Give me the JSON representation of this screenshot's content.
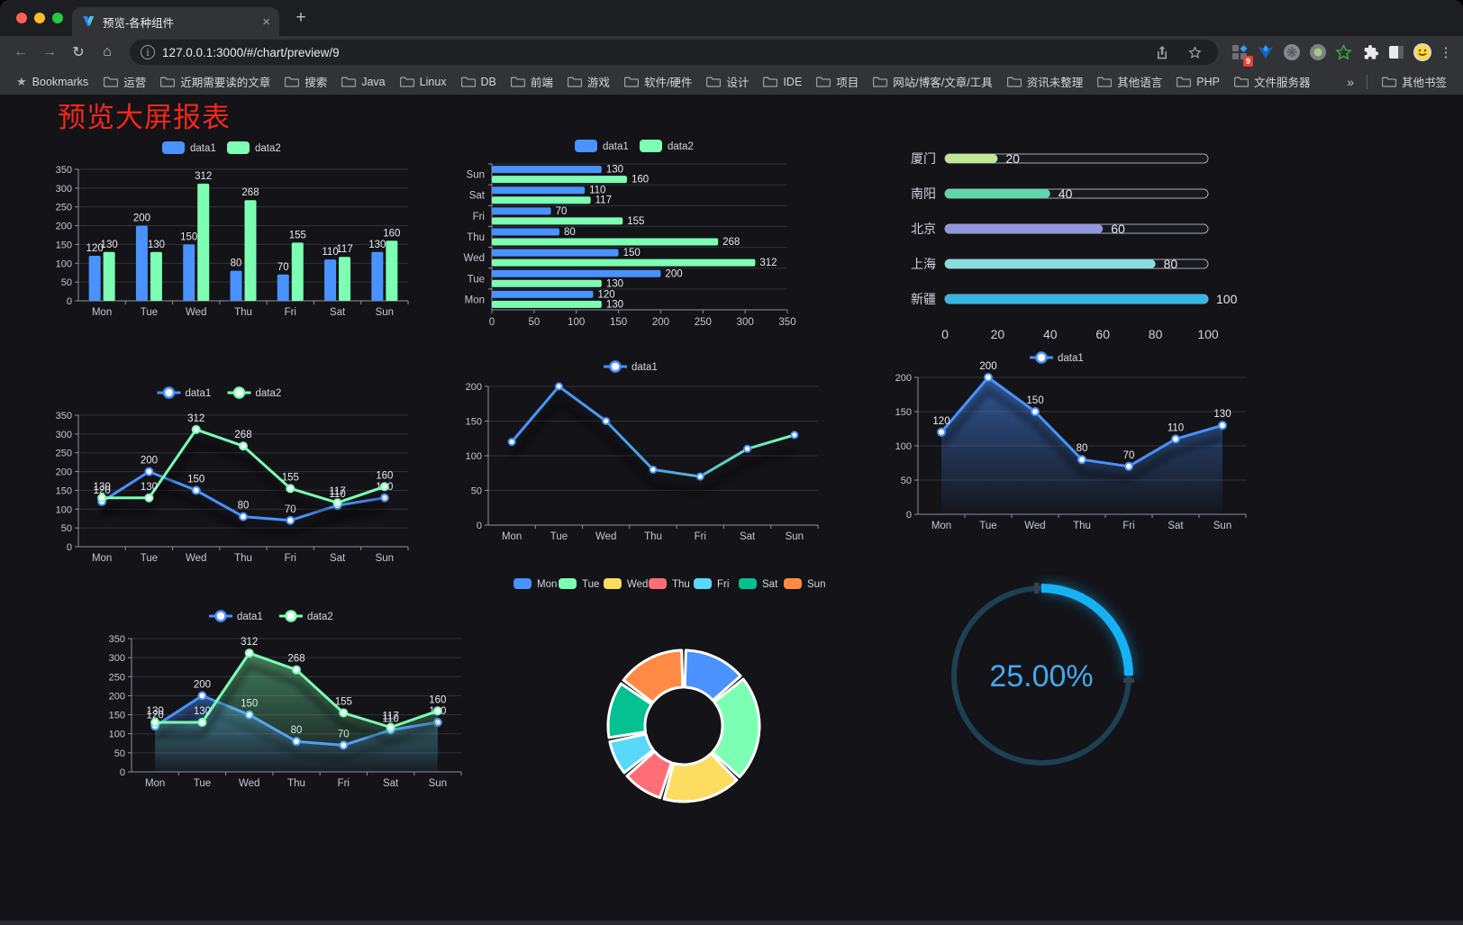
{
  "browser": {
    "tab_title": "预览-各种组件",
    "url": "127.0.0.1:3000/#/chart/preview/9",
    "new_tab": "+",
    "close_tab": "×",
    "bookmarks_label": "Bookmarks",
    "bookmarks": [
      "运营",
      "近期需要读的文章",
      "搜索",
      "Java",
      "Linux",
      "DB",
      "前端",
      "游戏",
      "软件/硬件",
      "设计",
      "IDE",
      "项目",
      "网站/博客/文章/工具",
      "资讯未整理",
      "其他语言",
      "PHP",
      "文件服务器"
    ],
    "bookmarks_overflow": "»",
    "other_bookmarks": "其他书签",
    "extension_badge": "9",
    "menu_dots": "⋮"
  },
  "page": {
    "title": "预览大屏报表",
    "title_color": "#f4271a",
    "background": "#131318"
  },
  "chart_data": [
    {
      "renderer": "bar",
      "type": "bar",
      "categories": [
        "Mon",
        "Tue",
        "Wed",
        "Thu",
        "Fri",
        "Sat",
        "Sun"
      ],
      "series": [
        {
          "name": "data1",
          "color": "#4992ff",
          "values": [
            120,
            200,
            150,
            80,
            70,
            110,
            130
          ]
        },
        {
          "name": "data2",
          "color": "#7cffb2",
          "values": [
            130,
            130,
            312,
            268,
            155,
            117,
            160
          ]
        }
      ],
      "ylim": [
        0,
        350
      ],
      "ystep": 50,
      "legend_position": "top",
      "grid": true
    },
    {
      "renderer": "hbar",
      "type": "bar",
      "orientation": "horizontal",
      "categories": [
        "Sun",
        "Sat",
        "Fri",
        "Thu",
        "Wed",
        "Tue",
        "Mon"
      ],
      "series": [
        {
          "name": "data1",
          "color": "#4992ff",
          "values": [
            130,
            110,
            70,
            80,
            150,
            200,
            120
          ]
        },
        {
          "name": "data2",
          "color": "#7cffb2",
          "values": [
            160,
            117,
            155,
            268,
            312,
            130,
            130
          ]
        }
      ],
      "xlim": [
        0,
        350
      ],
      "xstep": 50,
      "legend_position": "top",
      "grid": true
    },
    {
      "renderer": "progress",
      "type": "bar",
      "orientation": "horizontal",
      "categories": [
        "厦门",
        "南阳",
        "北京",
        "上海",
        "新疆"
      ],
      "values": [
        20,
        40,
        60,
        80,
        100
      ],
      "colors": [
        "#c3e798",
        "#5fd9a9",
        "#9197dd",
        "#86dfdf",
        "#35b6e6"
      ],
      "xlim": [
        0,
        100
      ],
      "ticks": [
        0,
        20,
        40,
        60,
        80,
        100
      ]
    },
    {
      "renderer": "line2",
      "type": "line",
      "categories": [
        "Mon",
        "Tue",
        "Wed",
        "Thu",
        "Fri",
        "Sat",
        "Sun"
      ],
      "series": [
        {
          "name": "data1",
          "color": "#4992ff",
          "values": [
            120,
            200,
            150,
            80,
            70,
            110,
            130
          ]
        },
        {
          "name": "data2",
          "color": "#7cffb2",
          "values": [
            130,
            130,
            312,
            268,
            155,
            117,
            160
          ]
        }
      ],
      "ylim": [
        0,
        350
      ],
      "ystep": 50,
      "show_labels": true,
      "legend_position": "top",
      "grid": true
    },
    {
      "renderer": "linegrad",
      "type": "line",
      "categories": [
        "Mon",
        "Tue",
        "Wed",
        "Thu",
        "Fri",
        "Sat",
        "Sun"
      ],
      "series": [
        {
          "name": "data1",
          "gradient": [
            "#4992ff",
            "#7cffb2"
          ],
          "values": [
            120,
            200,
            150,
            80,
            70,
            110,
            130
          ]
        }
      ],
      "ylim": [
        0,
        200
      ],
      "ystep": 50,
      "show_labels": false,
      "legend_position": "top",
      "grid": true
    },
    {
      "renderer": "area1",
      "type": "area",
      "categories": [
        "Mon",
        "Tue",
        "Wed",
        "Thu",
        "Fri",
        "Sat",
        "Sun"
      ],
      "series": [
        {
          "name": "data1",
          "color": "#4992ff",
          "values": [
            120,
            200,
            150,
            80,
            70,
            110,
            130
          ]
        }
      ],
      "ylim": [
        0,
        200
      ],
      "ystep": 50,
      "show_labels": true,
      "legend_position": "top",
      "grid": true
    },
    {
      "renderer": "area2",
      "type": "area",
      "categories": [
        "Mon",
        "Tue",
        "Wed",
        "Thu",
        "Fri",
        "Sat",
        "Sun"
      ],
      "series": [
        {
          "name": "data1",
          "color": "#4992ff",
          "values": [
            120,
            200,
            150,
            80,
            70,
            110,
            130
          ]
        },
        {
          "name": "data2",
          "color": "#7cffb2",
          "values": [
            130,
            130,
            312,
            268,
            155,
            117,
            160
          ]
        }
      ],
      "ylim": [
        0,
        350
      ],
      "ystep": 50,
      "show_labels": true,
      "legend_position": "top",
      "grid": true
    },
    {
      "renderer": "donut",
      "type": "pie",
      "categories": [
        "Mon",
        "Tue",
        "Wed",
        "Thu",
        "Fri",
        "Sat",
        "Sun"
      ],
      "values": [
        120,
        200,
        150,
        80,
        70,
        110,
        130
      ],
      "colors": [
        "#4992ff",
        "#7cffb2",
        "#fddd60",
        "#ff6e76",
        "#58d9f9",
        "#05c091",
        "#ff8a45"
      ],
      "legend_position": "top"
    },
    {
      "renderer": "gauge",
      "type": "gauge",
      "value": 25,
      "label": "25.00%",
      "color": "#14b2f4",
      "track_color": "#1c4152",
      "text_color": "#43a9ec"
    }
  ]
}
